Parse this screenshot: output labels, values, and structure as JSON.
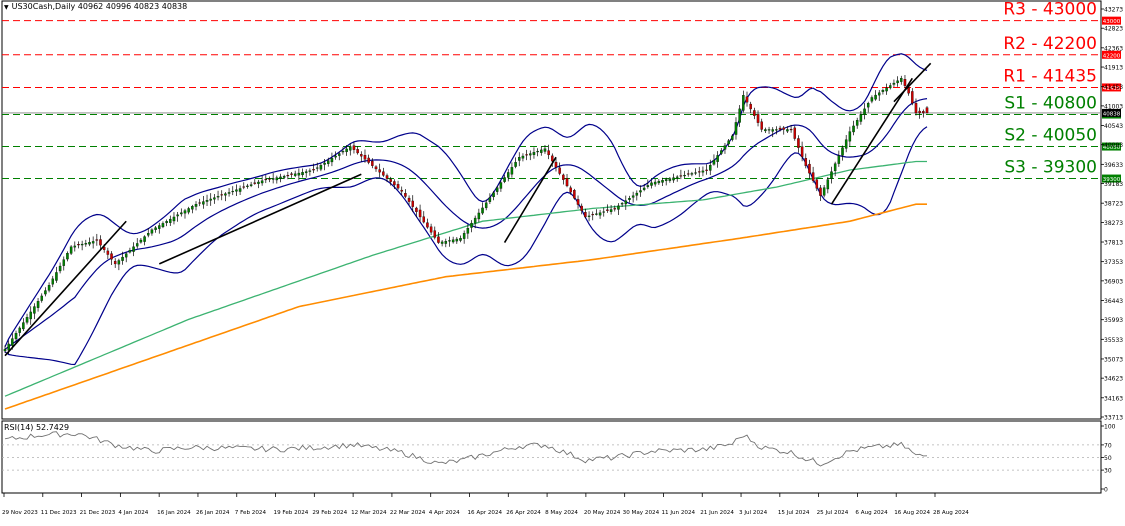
{
  "header": {
    "symbol_line": "US30Cash,Daily  40962 40996 40823 40838",
    "rsi_label": "RSI(14) 52.7429"
  },
  "colors": {
    "resistance": "#ff0000",
    "support": "#008000",
    "bollinger": "#00008b",
    "ma_green": "#3cb371",
    "ma_orange": "#ff8c00",
    "bull_candle": "#008000",
    "bear_candle": "#cc0000",
    "trendline": "#000000",
    "current_price_label": "#000000"
  },
  "chart_data": [
    {
      "type": "line",
      "title": "US30Cash,Daily",
      "ohlc_last": {
        "open": 40962,
        "high": 40996,
        "low": 40823,
        "close": 40838
      },
      "xlabel": "",
      "ylabel": "",
      "x_ticks": [
        "29 Nov 2023",
        "11 Dec 2023",
        "21 Dec 2023",
        "4 Jan 2024",
        "16 Jan 2024",
        "26 Jan 2024",
        "7 Feb 2024",
        "19 Feb 2024",
        "29 Feb 2024",
        "12 Mar 2024",
        "22 Mar 2024",
        "4 Apr 2024",
        "16 Apr 2024",
        "26 Apr 2024",
        "8 May 2024",
        "20 May 2024",
        "30 May 2024",
        "11 Jun 2024",
        "21 Jun 2024",
        "3 Jul 2024",
        "15 Jul 2024",
        "25 Jul 2024",
        "6 Aug 2024",
        "16 Aug 2024",
        "28 Aug 2024"
      ],
      "y_ticks": [
        43273,
        42823,
        42363,
        41913,
        41453,
        41003,
        40543,
        40093,
        39633,
        39183,
        38723,
        38273,
        37813,
        37353,
        36903,
        36443,
        35993,
        35533,
        35073,
        34623,
        34163,
        33713
      ],
      "ylim": [
        33713,
        43273
      ],
      "levels": [
        {
          "name": "R3",
          "label": "R3 - 43000",
          "value": 43000,
          "tag": "43000",
          "kind": "resistance"
        },
        {
          "name": "R2",
          "label": "R2 - 42200",
          "value": 42200,
          "tag": "42200",
          "kind": "resistance"
        },
        {
          "name": "R1",
          "label": "R1 - 41435",
          "value": 41435,
          "tag": "41435",
          "kind": "resistance"
        },
        {
          "name": "S1",
          "label": "S1 - 40800",
          "value": 40800,
          "tag": "40800",
          "kind": "support"
        },
        {
          "name": "S2",
          "label": "S2 - 40050",
          "value": 40050,
          "tag": "40050",
          "kind": "support"
        },
        {
          "name": "S3",
          "label": "S3 - 39300",
          "value": 39300,
          "tag": "39300",
          "kind": "support"
        }
      ],
      "current_price": 40838,
      "close_anchors": [
        [
          0,
          35300
        ],
        [
          12,
          36800
        ],
        [
          18,
          37700
        ],
        [
          25,
          37850
        ],
        [
          30,
          37300
        ],
        [
          40,
          38100
        ],
        [
          52,
          38700
        ],
        [
          70,
          39250
        ],
        [
          84,
          39500
        ],
        [
          94,
          40050
        ],
        [
          108,
          39000
        ],
        [
          118,
          37800
        ],
        [
          124,
          37900
        ],
        [
          140,
          39800
        ],
        [
          147,
          40000
        ],
        [
          158,
          38400
        ],
        [
          166,
          38600
        ],
        [
          176,
          39200
        ],
        [
          191,
          39500
        ],
        [
          198,
          40300
        ],
        [
          201,
          41250
        ],
        [
          206,
          40450
        ],
        [
          214,
          40450
        ],
        [
          218,
          39600
        ],
        [
          222,
          38900
        ],
        [
          230,
          40400
        ],
        [
          236,
          41200
        ],
        [
          244,
          41650
        ],
        [
          246,
          41300
        ],
        [
          248,
          40838
        ]
      ],
      "series": [
        {
          "name": "Bollinger Upper",
          "role": "bb_upper"
        },
        {
          "name": "Bollinger Middle",
          "role": "bb_mid"
        },
        {
          "name": "Bollinger Lower",
          "role": "bb_lower"
        },
        {
          "name": "Moving Average (green)",
          "role": "ma_green",
          "anchors": [
            [
              0,
              34200
            ],
            [
              50,
              36000
            ],
            [
              100,
              37500
            ],
            [
              130,
              38300
            ],
            [
              160,
              38600
            ],
            [
              190,
              38800
            ],
            [
              210,
              39100
            ],
            [
              230,
              39500
            ],
            [
              248,
              39700
            ]
          ]
        },
        {
          "name": "Moving Average (orange)",
          "role": "ma_orange",
          "anchors": [
            [
              0,
              33900
            ],
            [
              40,
              35100
            ],
            [
              80,
              36300
            ],
            [
              120,
              37000
            ],
            [
              160,
              37400
            ],
            [
              200,
              37900
            ],
            [
              230,
              38300
            ],
            [
              248,
              38700
            ]
          ]
        }
      ],
      "trendlines": [
        {
          "from": [
            0,
            35150
          ],
          "to": [
            33,
            38300
          ]
        },
        {
          "from": [
            42,
            37300
          ],
          "to": [
            97,
            39400
          ]
        },
        {
          "from": [
            136,
            37800
          ],
          "to": [
            150,
            39800
          ]
        },
        {
          "from": [
            225,
            38700
          ],
          "to": [
            247,
            41650
          ]
        },
        {
          "from": [
            242,
            41100
          ],
          "to": [
            252,
            42000
          ]
        }
      ]
    },
    {
      "type": "line",
      "title": "RSI(14)",
      "current_value": 52.7429,
      "ylim": [
        0,
        100
      ],
      "y_ticks": [
        100,
        70,
        50,
        30,
        0
      ],
      "levels": [
        70,
        50,
        30
      ],
      "anchors": [
        [
          0,
          78
        ],
        [
          10,
          86
        ],
        [
          20,
          88
        ],
        [
          30,
          70
        ],
        [
          40,
          60
        ],
        [
          50,
          66
        ],
        [
          60,
          65
        ],
        [
          75,
          63
        ],
        [
          85,
          66
        ],
        [
          95,
          70
        ],
        [
          108,
          58
        ],
        [
          118,
          40
        ],
        [
          124,
          45
        ],
        [
          140,
          68
        ],
        [
          147,
          70
        ],
        [
          158,
          46
        ],
        [
          166,
          50
        ],
        [
          176,
          60
        ],
        [
          191,
          63
        ],
        [
          198,
          72
        ],
        [
          201,
          86
        ],
        [
          206,
          66
        ],
        [
          214,
          58
        ],
        [
          218,
          48
        ],
        [
          222,
          40
        ],
        [
          230,
          60
        ],
        [
          236,
          66
        ],
        [
          244,
          70
        ],
        [
          246,
          63
        ],
        [
          248,
          52.7
        ]
      ]
    }
  ]
}
